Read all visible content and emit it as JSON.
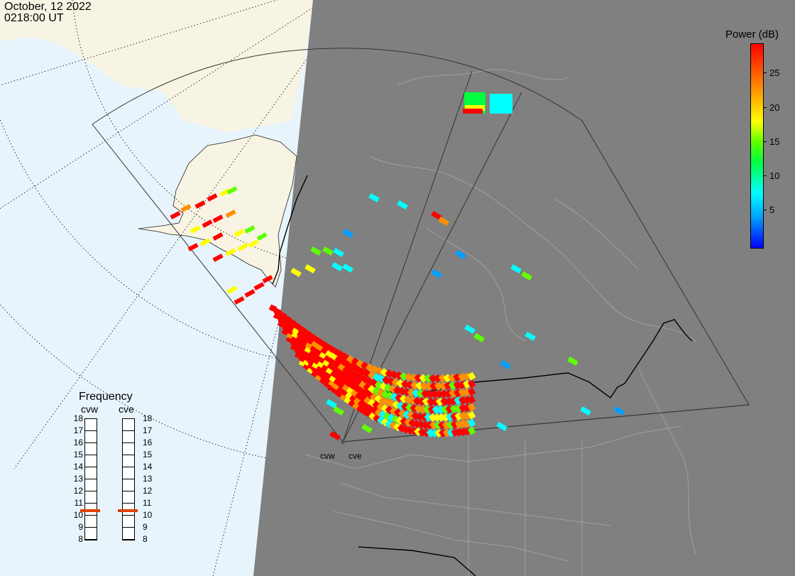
{
  "header": {
    "date": "October, 12 2022",
    "time": "0218:00 UT"
  },
  "colorbar": {
    "title": "Power (dB)",
    "ticks": [
      "25",
      "20",
      "15",
      "10",
      "5"
    ],
    "min": 0,
    "max": 30,
    "colors": [
      "#0000ff",
      "#00a0ff",
      "#00ffff",
      "#00ff40",
      "#60ff00",
      "#ffff00",
      "#ff9000",
      "#ff0000"
    ]
  },
  "frequency": {
    "title": "Frequency",
    "radars": [
      {
        "name": "cvw",
        "selected_mhz": 11
      },
      {
        "name": "cve",
        "selected_mhz": 11
      }
    ],
    "scale": [
      "18",
      "17",
      "16",
      "15",
      "14",
      "13",
      "12",
      "11",
      "10",
      "9",
      "8"
    ]
  },
  "radar_sites": [
    "cvw",
    "cve"
  ],
  "map": {
    "ocean_color": "#e8f4fc",
    "land_color": "#f8f4e4",
    "night_color": "#808080"
  }
}
